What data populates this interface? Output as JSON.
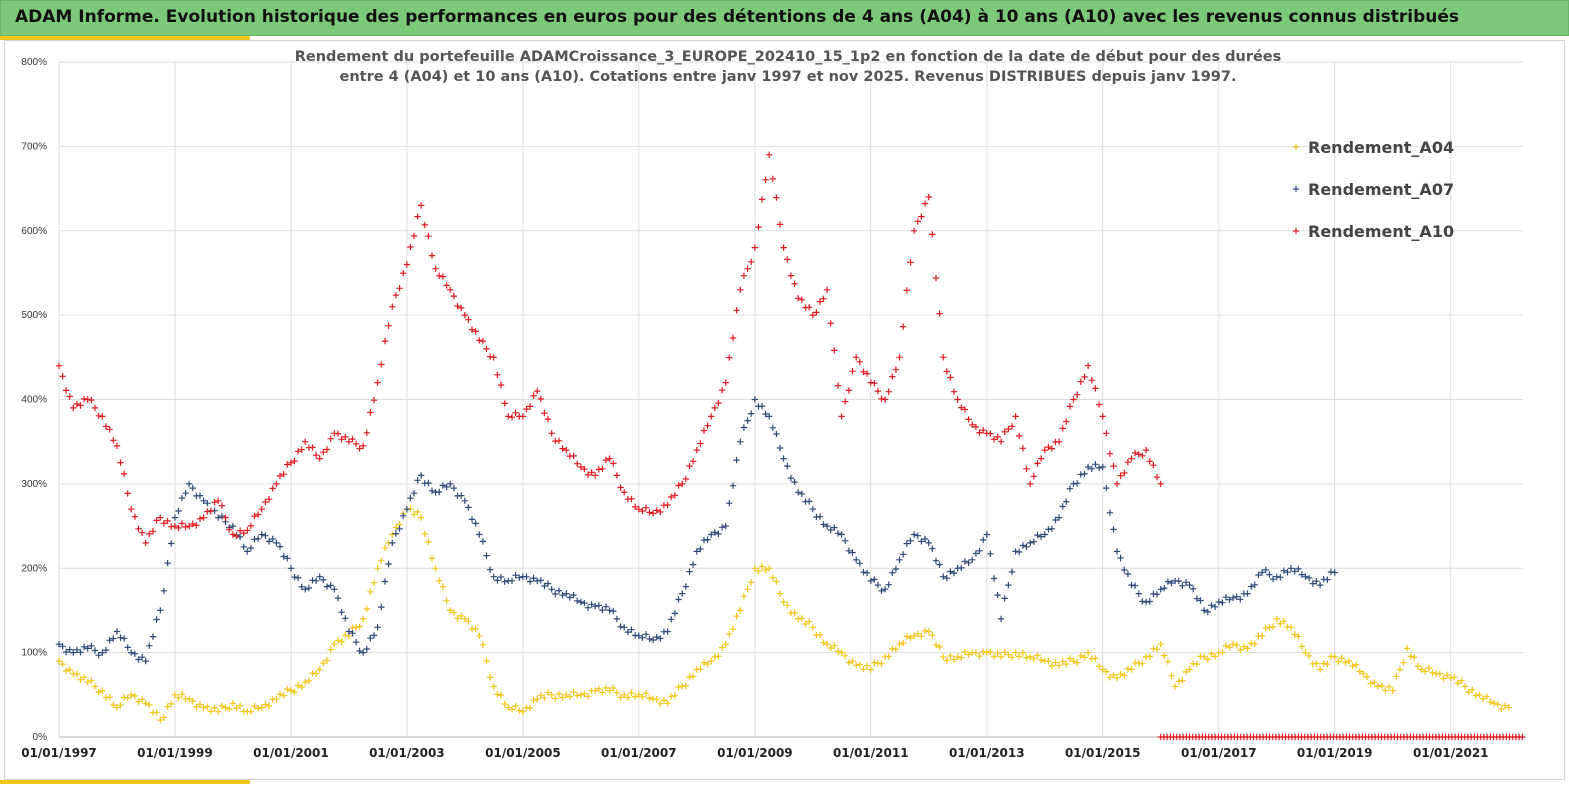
{
  "header": {
    "title": "ADAM Informe. Evolution historique des performances en euros pour des détentions de 4 ans (A04) à 10 ans (A10) avec les revenus connus distribués",
    "accent_color": "#f5c518",
    "banner_color": "#7dc97a"
  },
  "chart_data": {
    "type": "scatter",
    "title": "Rendement du portefeuille ADAMCroissance_3_EUROPE_202410_15_1p2  en fonction de la date de début pour des durées",
    "subtitle": "entre 4 (A04) et 10 ans (A10). Cotations entre janv 1997 et nov 2025. Revenus DISTRIBUES depuis janv 1997.",
    "xlabel": "",
    "ylabel": "",
    "x_range": [
      "1997-01-01",
      "2022-04-01"
    ],
    "ylim": [
      0,
      800
    ],
    "y_ticks": [
      "0%",
      "100%",
      "200%",
      "300%",
      "400%",
      "500%",
      "600%",
      "700%",
      "800%"
    ],
    "x_ticks": [
      "01/01/1997",
      "01/01/1999",
      "01/01/2001",
      "01/01/2003",
      "01/01/2005",
      "01/01/2007",
      "01/01/2009",
      "01/01/2011",
      "01/01/2013",
      "01/01/2015",
      "01/01/2017",
      "01/01/2019",
      "01/01/2021"
    ],
    "grid": true,
    "legend_position": "top-right",
    "marker": "+",
    "series": [
      {
        "name": "Rendement_A04",
        "color": "#f5c518",
        "points": [
          [
            "1997-01-01",
            90
          ],
          [
            "1997-04-01",
            75
          ],
          [
            "1997-07-01",
            65
          ],
          [
            "1997-10-01",
            55
          ],
          [
            "1998-01-01",
            35
          ],
          [
            "1998-04-01",
            50
          ],
          [
            "1998-07-01",
            40
          ],
          [
            "1998-10-01",
            20
          ],
          [
            "1999-01-01",
            50
          ],
          [
            "1999-04-01",
            45
          ],
          [
            "1999-07-01",
            35
          ],
          [
            "1999-10-01",
            30
          ],
          [
            "2000-01-01",
            40
          ],
          [
            "2000-04-01",
            30
          ],
          [
            "2000-07-01",
            35
          ],
          [
            "2000-10-01",
            45
          ],
          [
            "2001-01-01",
            55
          ],
          [
            "2001-04-01",
            65
          ],
          [
            "2001-07-01",
            80
          ],
          [
            "2001-10-01",
            110
          ],
          [
            "2002-01-01",
            120
          ],
          [
            "2002-04-01",
            140
          ],
          [
            "2002-07-01",
            200
          ],
          [
            "2002-10-01",
            240
          ],
          [
            "2003-01-01",
            270
          ],
          [
            "2003-04-01",
            260
          ],
          [
            "2003-07-01",
            200
          ],
          [
            "2003-10-01",
            150
          ],
          [
            "2004-01-01",
            140
          ],
          [
            "2004-04-01",
            120
          ],
          [
            "2004-07-01",
            60
          ],
          [
            "2004-10-01",
            35
          ],
          [
            "2005-01-01",
            30
          ],
          [
            "2005-04-01",
            45
          ],
          [
            "2005-07-01",
            50
          ],
          [
            "2005-10-01",
            50
          ],
          [
            "2006-01-01",
            50
          ],
          [
            "2006-04-01",
            55
          ],
          [
            "2006-07-01",
            55
          ],
          [
            "2006-10-01",
            50
          ],
          [
            "2007-01-01",
            50
          ],
          [
            "2007-04-01",
            45
          ],
          [
            "2007-07-01",
            40
          ],
          [
            "2007-10-01",
            60
          ],
          [
            "2008-01-01",
            80
          ],
          [
            "2008-04-01",
            90
          ],
          [
            "2008-07-01",
            110
          ],
          [
            "2008-10-01",
            150
          ],
          [
            "2009-01-01",
            200
          ],
          [
            "2009-04-01",
            200
          ],
          [
            "2009-07-01",
            160
          ],
          [
            "2009-10-01",
            140
          ],
          [
            "2010-01-01",
            130
          ],
          [
            "2010-04-01",
            110
          ],
          [
            "2010-07-01",
            100
          ],
          [
            "2010-10-01",
            85
          ],
          [
            "2011-01-01",
            80
          ],
          [
            "2011-04-01",
            95
          ],
          [
            "2011-07-01",
            110
          ],
          [
            "2011-10-01",
            120
          ],
          [
            "2012-01-01",
            125
          ],
          [
            "2012-04-01",
            95
          ],
          [
            "2012-07-01",
            95
          ],
          [
            "2012-10-01",
            100
          ],
          [
            "2013-01-01",
            100
          ],
          [
            "2013-04-01",
            95
          ],
          [
            "2013-07-01",
            100
          ],
          [
            "2013-10-01",
            95
          ],
          [
            "2014-01-01",
            90
          ],
          [
            "2014-04-01",
            85
          ],
          [
            "2014-07-01",
            90
          ],
          [
            "2014-10-01",
            100
          ],
          [
            "2015-01-01",
            80
          ],
          [
            "2015-04-01",
            70
          ],
          [
            "2015-07-01",
            80
          ],
          [
            "2015-10-01",
            95
          ],
          [
            "2016-01-01",
            110
          ],
          [
            "2016-04-01",
            60
          ],
          [
            "2016-07-01",
            80
          ],
          [
            "2016-10-01",
            95
          ],
          [
            "2017-01-01",
            100
          ],
          [
            "2017-04-01",
            110
          ],
          [
            "2017-07-01",
            105
          ],
          [
            "2017-10-01",
            120
          ],
          [
            "2018-01-01",
            140
          ],
          [
            "2018-04-01",
            130
          ],
          [
            "2018-07-01",
            100
          ],
          [
            "2018-10-01",
            80
          ],
          [
            "2019-01-01",
            95
          ],
          [
            "2019-04-01",
            90
          ],
          [
            "2019-07-01",
            75
          ],
          [
            "2019-10-01",
            60
          ],
          [
            "2020-01-01",
            55
          ],
          [
            "2020-04-01",
            105
          ],
          [
            "2020-07-01",
            80
          ],
          [
            "2020-10-01",
            75
          ],
          [
            "2021-01-01",
            70
          ],
          [
            "2021-04-01",
            60
          ],
          [
            "2021-07-01",
            50
          ],
          [
            "2021-10-01",
            40
          ],
          [
            "2022-01-01",
            35
          ]
        ]
      },
      {
        "name": "Rendement_A07",
        "color": "#2f4a7a",
        "points": [
          [
            "1997-01-01",
            110
          ],
          [
            "1997-04-01",
            100
          ],
          [
            "1997-07-01",
            105
          ],
          [
            "1997-10-01",
            100
          ],
          [
            "1998-01-01",
            125
          ],
          [
            "1998-04-01",
            100
          ],
          [
            "1998-07-01",
            90
          ],
          [
            "1998-10-01",
            150
          ],
          [
            "1999-01-01",
            260
          ],
          [
            "1999-04-01",
            300
          ],
          [
            "1999-07-01",
            280
          ],
          [
            "1999-10-01",
            260
          ],
          [
            "2000-01-01",
            250
          ],
          [
            "2000-04-01",
            220
          ],
          [
            "2000-07-01",
            240
          ],
          [
            "2000-10-01",
            230
          ],
          [
            "2001-01-01",
            200
          ],
          [
            "2001-04-01",
            175
          ],
          [
            "2001-07-01",
            190
          ],
          [
            "2001-10-01",
            175
          ],
          [
            "2002-01-01",
            125
          ],
          [
            "2002-04-01",
            100
          ],
          [
            "2002-07-01",
            130
          ],
          [
            "2002-10-01",
            230
          ],
          [
            "2003-01-01",
            270
          ],
          [
            "2003-04-01",
            310
          ],
          [
            "2003-07-01",
            290
          ],
          [
            "2003-10-01",
            300
          ],
          [
            "2004-01-01",
            280
          ],
          [
            "2004-04-01",
            240
          ],
          [
            "2004-07-01",
            190
          ],
          [
            "2004-10-01",
            185
          ],
          [
            "2005-01-01",
            190
          ],
          [
            "2005-04-01",
            185
          ],
          [
            "2005-07-01",
            175
          ],
          [
            "2005-10-01",
            170
          ],
          [
            "2006-01-01",
            160
          ],
          [
            "2006-04-01",
            155
          ],
          [
            "2006-07-01",
            150
          ],
          [
            "2006-10-01",
            130
          ],
          [
            "2007-01-01",
            120
          ],
          [
            "2007-04-01",
            115
          ],
          [
            "2007-07-01",
            125
          ],
          [
            "2007-10-01",
            170
          ],
          [
            "2008-01-01",
            220
          ],
          [
            "2008-04-01",
            240
          ],
          [
            "2008-07-01",
            250
          ],
          [
            "2008-10-01",
            350
          ],
          [
            "2009-01-01",
            400
          ],
          [
            "2009-04-01",
            380
          ],
          [
            "2009-07-01",
            330
          ],
          [
            "2009-10-01",
            290
          ],
          [
            "2010-01-01",
            270
          ],
          [
            "2010-04-01",
            250
          ],
          [
            "2010-07-01",
            240
          ],
          [
            "2010-10-01",
            210
          ],
          [
            "2011-01-01",
            185
          ],
          [
            "2011-04-01",
            175
          ],
          [
            "2011-07-01",
            210
          ],
          [
            "2011-10-01",
            240
          ],
          [
            "2012-01-01",
            230
          ],
          [
            "2012-04-01",
            190
          ],
          [
            "2012-07-01",
            200
          ],
          [
            "2012-10-01",
            210
          ],
          [
            "2013-01-01",
            240
          ],
          [
            "2013-04-01",
            140
          ],
          [
            "2013-07-01",
            220
          ],
          [
            "2013-10-01",
            230
          ],
          [
            "2014-01-01",
            240
          ],
          [
            "2014-04-01",
            260
          ],
          [
            "2014-07-01",
            300
          ],
          [
            "2014-10-01",
            320
          ],
          [
            "2015-01-01",
            320
          ],
          [
            "2015-04-01",
            220
          ],
          [
            "2015-07-01",
            180
          ],
          [
            "2015-10-01",
            160
          ],
          [
            "2016-01-01",
            175
          ],
          [
            "2016-04-01",
            185
          ],
          [
            "2016-07-01",
            180
          ],
          [
            "2016-10-01",
            150
          ],
          [
            "2017-01-01",
            160
          ],
          [
            "2017-04-01",
            165
          ],
          [
            "2017-07-01",
            170
          ],
          [
            "2017-10-01",
            195
          ],
          [
            "2018-01-01",
            190
          ],
          [
            "2018-04-01",
            200
          ],
          [
            "2018-07-01",
            190
          ],
          [
            "2018-10-01",
            180
          ],
          [
            "2019-01-01",
            195
          ]
        ]
      },
      {
        "name": "Rendement_A10",
        "color": "#e21b23",
        "points": [
          [
            "1997-01-01",
            440
          ],
          [
            "1997-04-01",
            390
          ],
          [
            "1997-07-01",
            400
          ],
          [
            "1997-10-01",
            380
          ],
          [
            "1998-01-01",
            345
          ],
          [
            "1998-04-01",
            270
          ],
          [
            "1998-07-01",
            230
          ],
          [
            "1998-10-01",
            260
          ],
          [
            "1999-01-01",
            250
          ],
          [
            "1999-04-01",
            250
          ],
          [
            "1999-07-01",
            260
          ],
          [
            "1999-10-01",
            280
          ],
          [
            "2000-01-01",
            240
          ],
          [
            "2000-04-01",
            245
          ],
          [
            "2000-07-01",
            270
          ],
          [
            "2000-10-01",
            300
          ],
          [
            "2001-01-01",
            325
          ],
          [
            "2001-04-01",
            350
          ],
          [
            "2001-07-01",
            330
          ],
          [
            "2001-10-01",
            360
          ],
          [
            "2002-01-01",
            350
          ],
          [
            "2002-04-01",
            345
          ],
          [
            "2002-07-01",
            420
          ],
          [
            "2002-10-01",
            510
          ],
          [
            "2003-01-01",
            560
          ],
          [
            "2003-04-01",
            630
          ],
          [
            "2003-07-01",
            555
          ],
          [
            "2003-10-01",
            530
          ],
          [
            "2004-01-01",
            500
          ],
          [
            "2004-04-01",
            470
          ],
          [
            "2004-07-01",
            450
          ],
          [
            "2004-10-01",
            380
          ],
          [
            "2005-01-01",
            380
          ],
          [
            "2005-04-01",
            410
          ],
          [
            "2005-07-01",
            360
          ],
          [
            "2005-10-01",
            340
          ],
          [
            "2006-01-01",
            320
          ],
          [
            "2006-04-01",
            310
          ],
          [
            "2006-07-01",
            330
          ],
          [
            "2006-10-01",
            290
          ],
          [
            "2007-01-01",
            270
          ],
          [
            "2007-04-01",
            265
          ],
          [
            "2007-07-01",
            275
          ],
          [
            "2007-10-01",
            300
          ],
          [
            "2008-01-01",
            340
          ],
          [
            "2008-04-01",
            380
          ],
          [
            "2008-07-01",
            420
          ],
          [
            "2008-10-01",
            530
          ],
          [
            "2009-01-01",
            580
          ],
          [
            "2009-04-01",
            690
          ],
          [
            "2009-07-01",
            580
          ],
          [
            "2009-10-01",
            520
          ],
          [
            "2010-01-01",
            500
          ],
          [
            "2010-04-01",
            530
          ],
          [
            "2010-07-01",
            380
          ],
          [
            "2010-10-01",
            450
          ],
          [
            "2011-01-01",
            420
          ],
          [
            "2011-04-01",
            400
          ],
          [
            "2011-07-01",
            450
          ],
          [
            "2011-10-01",
            600
          ],
          [
            "2012-01-01",
            640
          ],
          [
            "2012-04-01",
            450
          ],
          [
            "2012-07-01",
            400
          ],
          [
            "2012-10-01",
            370
          ],
          [
            "2013-01-01",
            360
          ],
          [
            "2013-04-01",
            350
          ],
          [
            "2013-07-01",
            380
          ],
          [
            "2013-10-01",
            300
          ],
          [
            "2014-01-01",
            340
          ],
          [
            "2014-04-01",
            350
          ],
          [
            "2014-07-01",
            400
          ],
          [
            "2014-10-01",
            440
          ],
          [
            "2015-01-01",
            380
          ],
          [
            "2015-04-01",
            300
          ],
          [
            "2015-07-01",
            330
          ],
          [
            "2015-10-01",
            340
          ],
          [
            "2016-01-01",
            300
          ]
        ]
      }
    ],
    "zero_band": {
      "color": "#e21b23",
      "from": "2016-01-01",
      "to": "2022-04-01",
      "value": 0
    }
  }
}
